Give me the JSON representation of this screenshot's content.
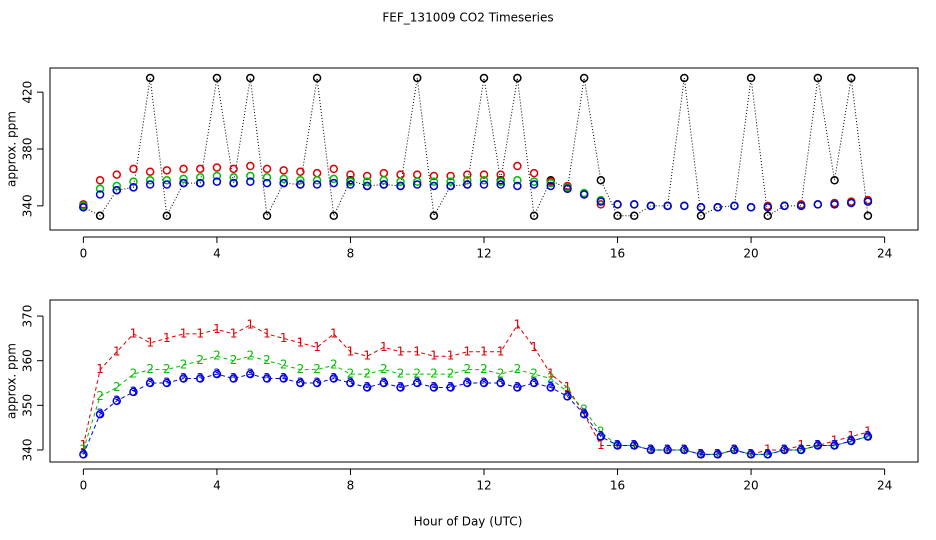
{
  "chart_data": [
    {
      "type": "scatter",
      "title": "FEF_131009  CO2 Timeseries",
      "ylabel": "approx. ppm",
      "x": [
        0,
        0.5,
        1,
        1.5,
        2,
        2.5,
        3,
        3.5,
        4,
        4.5,
        5,
        5.5,
        6,
        6.5,
        7,
        7.5,
        8,
        8.5,
        9,
        9.5,
        10,
        10.5,
        11,
        11.5,
        12,
        12.5,
        13,
        13.5,
        14,
        14.5,
        15,
        15.5,
        16,
        16.5,
        17,
        17.5,
        18,
        18.5,
        19,
        19.5,
        20,
        20.5,
        21,
        21.5,
        22,
        22.5,
        23,
        23.5
      ],
      "xlim": [
        -1,
        25
      ],
      "xticks": [
        0,
        4,
        8,
        12,
        16,
        20,
        24
      ],
      "ylim": [
        323,
        437
      ],
      "yticks": [
        340,
        380,
        420
      ],
      "series": [
        {
          "color": "#000000",
          "line": "dotted",
          "marker": "circle",
          "values": [
            339,
            333,
            351,
            353,
            430,
            333,
            356,
            356,
            430,
            356,
            430,
            333,
            356,
            355,
            430,
            333,
            358,
            354,
            355,
            354,
            430,
            333,
            354,
            355,
            430,
            358,
            430,
            333,
            358,
            352,
            430,
            358,
            333,
            333,
            340,
            340,
            430,
            333,
            339,
            340,
            430,
            333,
            340,
            340,
            430,
            358,
            430,
            333
          ]
        },
        {
          "color": "#e00000",
          "marker": "circle",
          "values": [
            341,
            358,
            362,
            366,
            364,
            365,
            366,
            366,
            367,
            366,
            368,
            366,
            365,
            364,
            363,
            366,
            362,
            361,
            363,
            362,
            362,
            361,
            361,
            362,
            362,
            362,
            368,
            363,
            357,
            354,
            348,
            341,
            341,
            341,
            340,
            340,
            340,
            339,
            339,
            340,
            339,
            340,
            340,
            341,
            341,
            342,
            343,
            344
          ]
        },
        {
          "color": "#00c000",
          "marker": "circle",
          "values": [
            340,
            352,
            354,
            357,
            358,
            358,
            359,
            360,
            361,
            360,
            361,
            360,
            359,
            358,
            358,
            359,
            357,
            357,
            358,
            357,
            357,
            357,
            357,
            358,
            358,
            357,
            358,
            357,
            356,
            353,
            349,
            344,
            341,
            341,
            340,
            340,
            340,
            339,
            339,
            340,
            339,
            339,
            340,
            340,
            341,
            341,
            342,
            343
          ]
        },
        {
          "color": "#0000e0",
          "marker": "circle",
          "values": [
            339,
            348,
            351,
            353,
            355,
            355,
            356,
            356,
            357,
            356,
            357,
            356,
            356,
            355,
            355,
            356,
            355,
            354,
            355,
            354,
            355,
            354,
            354,
            355,
            355,
            355,
            354,
            355,
            354,
            352,
            348,
            343,
            341,
            341,
            340,
            340,
            340,
            339,
            339,
            340,
            339,
            339,
            340,
            340,
            341,
            341,
            342,
            343
          ]
        }
      ]
    },
    {
      "type": "line",
      "ylabel": "approx. ppm",
      "xlabel": "Hour of Day (UTC)",
      "x": [
        0,
        0.5,
        1,
        1.5,
        2,
        2.5,
        3,
        3.5,
        4,
        4.5,
        5,
        5.5,
        6,
        6.5,
        7,
        7.5,
        8,
        8.5,
        9,
        9.5,
        10,
        10.5,
        11,
        11.5,
        12,
        12.5,
        13,
        13.5,
        14,
        14.5,
        15,
        15.5,
        16,
        16.5,
        17,
        17.5,
        18,
        18.5,
        19,
        19.5,
        20,
        20.5,
        21,
        21.5,
        22,
        22.5,
        23,
        23.5
      ],
      "xlim": [
        -1,
        25
      ],
      "xticks": [
        0,
        4,
        8,
        12,
        16,
        20,
        24
      ],
      "ylim": [
        337.3,
        373.6
      ],
      "yticks": [
        340,
        350,
        360,
        370
      ],
      "series": [
        {
          "color": "#e00000",
          "line": "dashed",
          "symbol": "1",
          "values": [
            341,
            358,
            362,
            366,
            364,
            365,
            366,
            366,
            367,
            366,
            368,
            366,
            365,
            364,
            363,
            366,
            362,
            361,
            363,
            362,
            362,
            361,
            361,
            362,
            362,
            362,
            368,
            363,
            357,
            354,
            348,
            341,
            341,
            341,
            340,
            340,
            340,
            339,
            339,
            340,
            339,
            340,
            340,
            341,
            341,
            342,
            343,
            344
          ]
        },
        {
          "color": "#00c000",
          "line": "dashed",
          "symbol": "2",
          "values": [
            340,
            352,
            354,
            357,
            358,
            358,
            359,
            360,
            361,
            360,
            361,
            360,
            359,
            358,
            358,
            359,
            357,
            357,
            358,
            357,
            357,
            357,
            357,
            358,
            358,
            357,
            358,
            357,
            356,
            353,
            349,
            344,
            341,
            341,
            340,
            340,
            340,
            339,
            339,
            340,
            339,
            339,
            340,
            340,
            341,
            341,
            342,
            343
          ]
        },
        {
          "color": "#0000e0",
          "line": "dashed",
          "marker": "circle",
          "symbol": "3",
          "values": [
            339,
            348,
            351,
            353,
            355,
            355,
            356,
            356,
            357,
            356,
            357,
            356,
            356,
            355,
            355,
            356,
            355,
            354,
            355,
            354,
            355,
            354,
            354,
            355,
            355,
            355,
            354,
            355,
            354,
            352,
            348,
            343,
            341,
            341,
            340,
            340,
            340,
            339,
            339,
            340,
            339,
            339,
            340,
            340,
            341,
            341,
            342,
            343
          ]
        }
      ]
    }
  ]
}
